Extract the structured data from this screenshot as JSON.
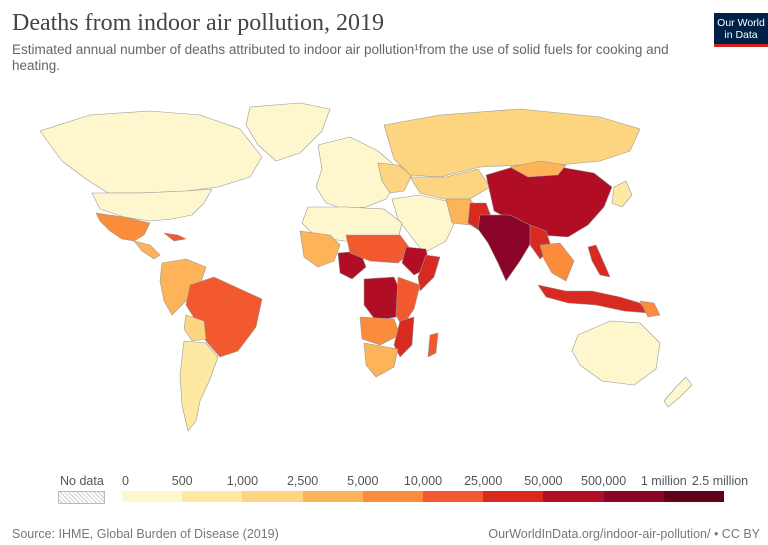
{
  "header": {
    "title": "Deaths from indoor air pollution, 2019",
    "subtitle": "Estimated annual number of deaths attributed to indoor air pollution¹from the use of solid fuels for cooking and heating."
  },
  "logo": {
    "line1": "Our World",
    "line2": "in Data"
  },
  "legend": {
    "no_data_label": "No data",
    "ticks": [
      "0",
      "500",
      "1,000",
      "2,500",
      "5,000",
      "10,000",
      "25,000",
      "50,000",
      "500,000",
      "1 million",
      "2.5 million"
    ],
    "colors": [
      "#fef7cd",
      "#fde9a2",
      "#fdd580",
      "#fdb358",
      "#fb8c3c",
      "#f2592e",
      "#d92a21",
      "#b10e26",
      "#8b0528",
      "#62001c"
    ]
  },
  "footer": {
    "source": "Source: IHME, Global Burden of Disease (2019)",
    "url": "OurWorldInData.org/indoor-air-pollution/",
    "license": " • CC BY"
  }
}
